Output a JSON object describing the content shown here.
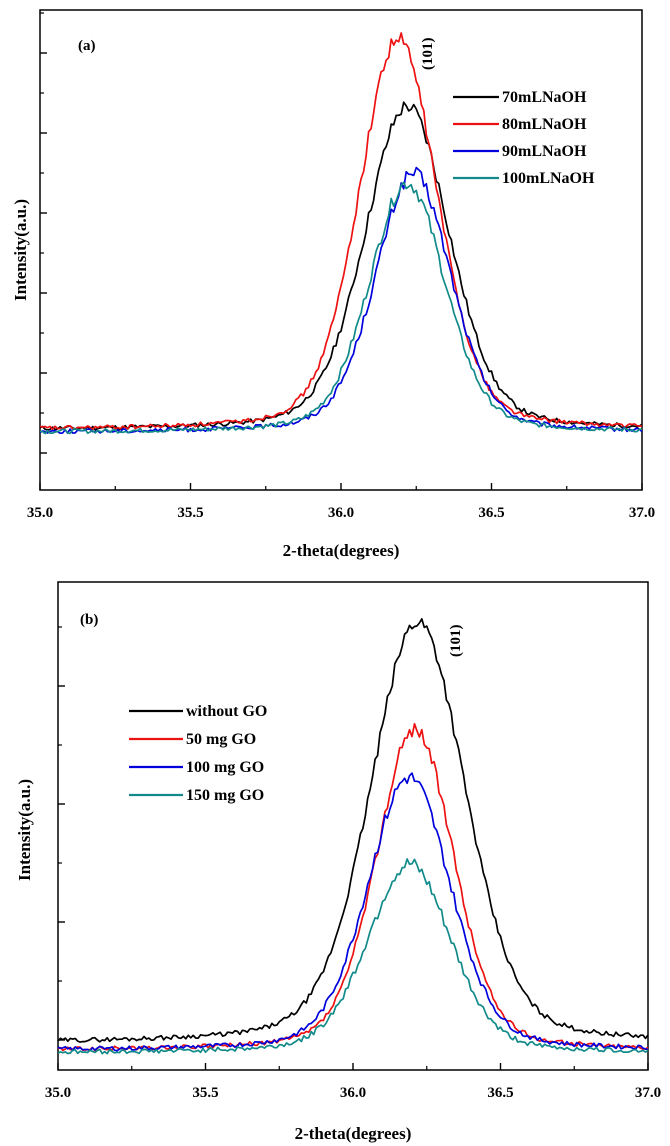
{
  "chart_data": [
    {
      "type": "line",
      "panel_label": "(a)",
      "peak_label": "(101)",
      "xlabel": "2-theta(degrees)",
      "ylabel": "Intensity(a.u.)",
      "xlim": [
        35.0,
        37.0
      ],
      "ylim": [
        0,
        100
      ],
      "x_ticks": [
        "35.0",
        "35.5",
        "36.0",
        "36.5",
        "37.0"
      ],
      "y_ticks_labeled": false,
      "legend_position": "top-right",
      "series": [
        {
          "name": "70mLNaOH",
          "color": "#000000",
          "peak_center": 36.22,
          "peak_height": 80,
          "sigma": 0.14,
          "baseline": 12.5
        },
        {
          "name": "80mLNaOH",
          "color": "#ee1111",
          "peak_center": 36.19,
          "peak_height": 94,
          "sigma": 0.13,
          "baseline": 12.5
        },
        {
          "name": "90mLNaOH",
          "color": "#0000dd",
          "peak_center": 36.24,
          "peak_height": 66,
          "sigma": 0.125,
          "baseline": 12.0
        },
        {
          "name": "100mLNaOH",
          "color": "#128a8a",
          "peak_center": 36.22,
          "peak_height": 64,
          "sigma": 0.125,
          "baseline": 12.0
        }
      ]
    },
    {
      "type": "line",
      "panel_label": "(b)",
      "peak_label": "(101)",
      "xlabel": "2-theta(degrees)",
      "ylabel": "Intensity(a.u.)",
      "xlim": [
        35.0,
        37.0
      ],
      "ylim": [
        0,
        100
      ],
      "x_ticks": [
        "35.0",
        "35.5",
        "36.0",
        "36.5",
        "37.0"
      ],
      "y_ticks_labeled": false,
      "legend_position": "top-left",
      "series": [
        {
          "name": "without GO",
          "color": "#000000",
          "peak_center": 36.22,
          "peak_height": 92,
          "sigma": 0.16,
          "baseline": 5.5
        },
        {
          "name": "50 mg GO",
          "color": "#ee1111",
          "peak_center": 36.21,
          "peak_height": 70,
          "sigma": 0.13,
          "baseline": 4.0
        },
        {
          "name": "100 mg GO",
          "color": "#0000dd",
          "peak_center": 36.19,
          "peak_height": 60,
          "sigma": 0.14,
          "baseline": 4.0
        },
        {
          "name": "150 mg GO",
          "color": "#128a8a",
          "peak_center": 36.19,
          "peak_height": 42,
          "sigma": 0.14,
          "baseline": 3.5
        }
      ]
    }
  ]
}
